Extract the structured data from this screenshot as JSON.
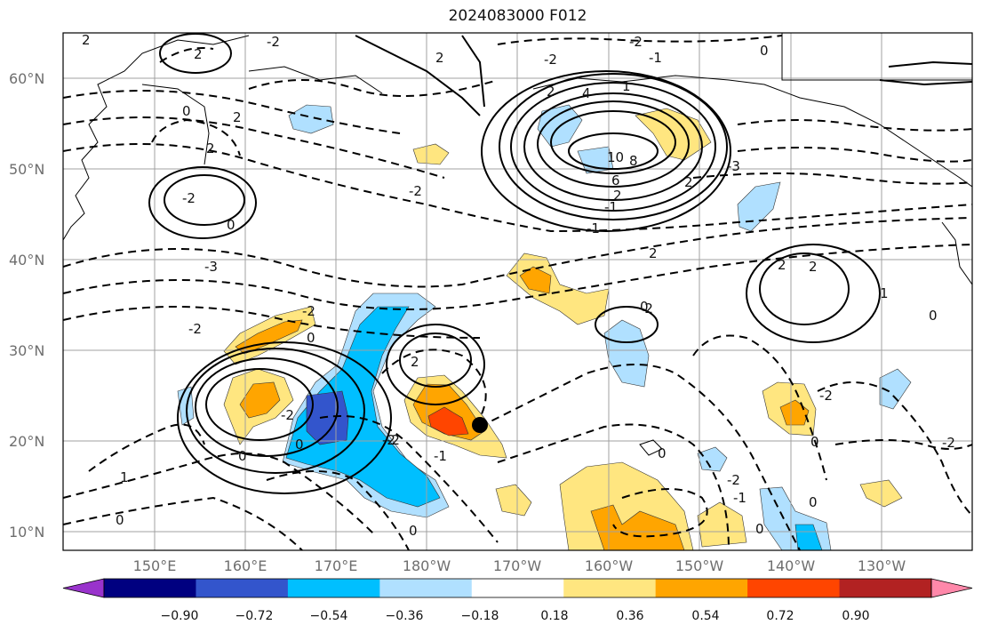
{
  "title": "2024083000 F012",
  "lat_labels": [
    "60°N",
    "50°N",
    "40°N",
    "30°N",
    "20°N",
    "10°N"
  ],
  "lon_labels": [
    "150°E",
    "160°E",
    "170°E",
    "180°W",
    "170°W",
    "160°W",
    "150°W",
    "140°W",
    "130°W"
  ],
  "colorbar": {
    "tick_labels": [
      "−0.90",
      "−0.72",
      "−0.54",
      "−0.36",
      "−0.18",
      "0.18",
      "0.36",
      "0.54",
      "0.72",
      "0.90"
    ],
    "colors": [
      "#9933cc",
      "#000080",
      "#3355cc",
      "#00bfff",
      "#b0e0ff",
      "#ffffff",
      "#ffe680",
      "#ffa500",
      "#ff4500",
      "#b22222",
      "#ff88aa"
    ]
  },
  "contour_labels": [
    "2",
    "2",
    "-2",
    "2",
    "-1",
    "-2",
    "0",
    "-2",
    "2",
    "4",
    "1",
    "10",
    "8",
    "6",
    "2",
    "-3",
    "2",
    "-1",
    "0",
    "2",
    "2",
    "-2",
    "0",
    "-3",
    "-2",
    "-1",
    "2",
    "2",
    "1",
    "0",
    "2",
    "-2",
    "-2",
    "0",
    "2",
    "-2",
    "0",
    "-2",
    "0",
    "0",
    "-2",
    "0",
    "-1",
    "0",
    "-2",
    "0",
    "-2",
    "-1",
    "0",
    "1",
    "0",
    "0",
    "-2",
    "-2"
  ],
  "colors": {
    "solid_line": "#000000",
    "dashed_line": "#000000",
    "grid": "#a0a0a0"
  },
  "marker": {
    "lat": 22,
    "lon_label": "174°W"
  }
}
